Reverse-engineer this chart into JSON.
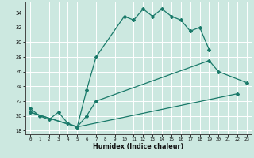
{
  "title": "",
  "xlabel": "Humidex (Indice chaleur)",
  "bg_color": "#cce8e0",
  "grid_color": "#ffffff",
  "line_color": "#1a7a6a",
  "xlim": [
    -0.5,
    23.5
  ],
  "ylim": [
    17.5,
    35.5
  ],
  "xticks": [
    0,
    1,
    2,
    3,
    4,
    5,
    6,
    7,
    8,
    9,
    10,
    11,
    12,
    13,
    14,
    15,
    16,
    17,
    18,
    19,
    20,
    21,
    22,
    23
  ],
  "yticks": [
    18,
    20,
    22,
    24,
    26,
    28,
    30,
    32,
    34
  ],
  "series1_x": [
    0,
    1,
    2,
    3,
    4,
    5,
    6,
    7,
    10,
    11,
    12,
    13,
    14,
    15,
    16,
    17,
    18,
    19
  ],
  "series1_y": [
    21.0,
    20.0,
    19.5,
    20.5,
    19.0,
    18.5,
    23.5,
    28.0,
    33.5,
    33.0,
    34.5,
    33.5,
    34.5,
    33.5,
    33.0,
    31.5,
    32.0,
    29.0
  ],
  "series2_x": [
    0,
    5,
    6,
    7,
    19,
    20,
    23
  ],
  "series2_y": [
    20.5,
    18.5,
    20.0,
    22.0,
    27.5,
    26.0,
    24.5
  ],
  "series3_x": [
    0,
    5,
    22
  ],
  "series3_y": [
    20.5,
    18.5,
    23.0
  ]
}
